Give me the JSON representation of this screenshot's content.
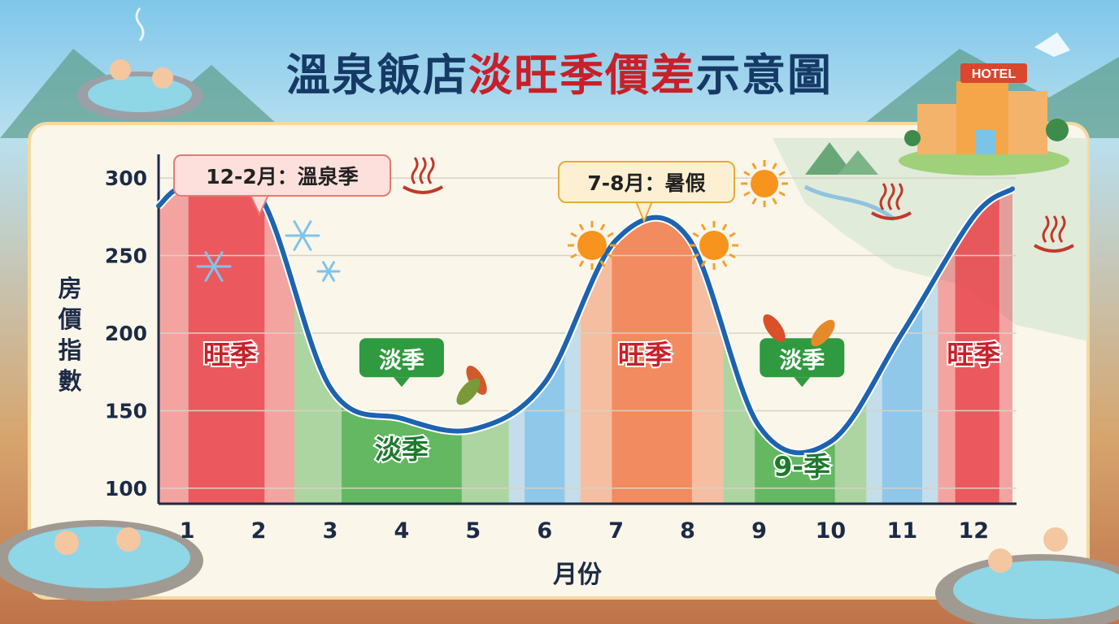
{
  "title": {
    "part1": "溫泉飯店",
    "part2": "淡旺季價差",
    "part3": "示意圖"
  },
  "callouts": {
    "winter": "12-2月：溫泉季",
    "summer": "7-8月：暑假"
  },
  "hotel_sign": "HOTEL",
  "colors": {
    "title_dark": "#163a66",
    "title_red": "#c8202a",
    "line": "#1d63b0",
    "peak_red": "#e8404a",
    "peak_orange": "#f07a4a",
    "offpeak_green": "#4cae4c",
    "shoulder_blue": "#7fc0ea"
  },
  "chart_data": {
    "type": "line",
    "xlabel": "月份",
    "ylabel": "房價指數",
    "ylim": [
      90,
      310
    ],
    "xlim": [
      0.6,
      12.6
    ],
    "yticks": [
      100,
      150,
      200,
      250,
      300
    ],
    "x": [
      1,
      2,
      3,
      4,
      5,
      6,
      7,
      8,
      9,
      10,
      11,
      12
    ],
    "x_tick_labels": [
      "1",
      "2",
      "3",
      "4",
      "5",
      "6",
      "7",
      "8",
      "9",
      "10",
      "11",
      "12"
    ],
    "series": [
      {
        "values": [
          295,
          290,
          165,
          145,
          138,
          168,
          260,
          262,
          140,
          130,
          200,
          275
        ]
      }
    ],
    "season_bands": [
      {
        "from": 0.6,
        "to": 2.5,
        "kind": "peak"
      },
      {
        "from": 2.5,
        "to": 5.5,
        "kind": "off"
      },
      {
        "from": 5.5,
        "to": 6.5,
        "kind": "shoulder"
      },
      {
        "from": 6.5,
        "to": 8.5,
        "kind": "peak-summer"
      },
      {
        "from": 8.5,
        "to": 10.5,
        "kind": "off"
      },
      {
        "from": 10.5,
        "to": 11.5,
        "kind": "shoulder"
      },
      {
        "from": 11.5,
        "to": 12.6,
        "kind": "peak"
      }
    ],
    "band_labels": [
      {
        "text": "旺季",
        "x": 1.6,
        "y": 180,
        "color": "#c8202a"
      },
      {
        "text": "淡季",
        "x": 4.0,
        "y": 119,
        "color": "#1f7a2e"
      },
      {
        "text": "旺季",
        "x": 7.4,
        "y": 180,
        "color": "#c8202a"
      },
      {
        "text": "9-季",
        "x": 9.6,
        "y": 108,
        "color": "#1f7a2e"
      },
      {
        "text": "旺季",
        "x": 12.0,
        "y": 180,
        "color": "#c8202a"
      }
    ],
    "bubble_labels": [
      {
        "text": "淡季",
        "x": 4.0,
        "y": 181
      },
      {
        "text": "淡季",
        "x": 9.6,
        "y": 181
      }
    ]
  }
}
